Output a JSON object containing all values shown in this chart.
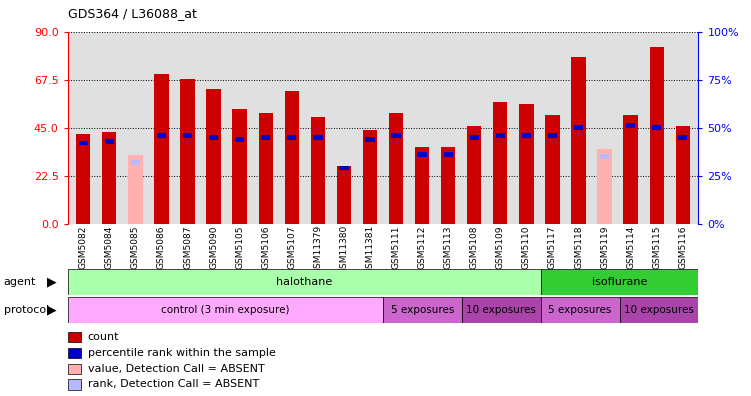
{
  "title": "GDS364 / L36088_at",
  "samples": [
    "GSM5082",
    "GSM5084",
    "GSM5085",
    "GSM5086",
    "GSM5087",
    "GSM5090",
    "GSM5105",
    "GSM5106",
    "GSM5107",
    "GSM11379",
    "GSM11380",
    "GSM11381",
    "GSM5111",
    "GSM5112",
    "GSM5113",
    "GSM5108",
    "GSM5109",
    "GSM5110",
    "GSM5117",
    "GSM5118",
    "GSM5119",
    "GSM5114",
    "GSM5115",
    "GSM5116"
  ],
  "count_values": [
    42,
    43,
    32,
    70,
    68,
    63,
    54,
    52,
    62,
    50,
    27,
    44,
    52,
    36,
    36,
    46,
    57,
    56,
    51,
    78,
    35,
    51,
    83,
    46
  ],
  "rank_values": [
    42,
    43,
    32,
    46,
    46,
    45,
    44,
    45,
    45,
    45,
    29,
    44,
    46,
    36,
    36,
    45,
    46,
    46,
    46,
    50,
    35,
    51,
    50,
    45
  ],
  "absent_count": [
    false,
    false,
    true,
    false,
    false,
    false,
    false,
    false,
    false,
    false,
    false,
    false,
    false,
    false,
    false,
    false,
    false,
    false,
    false,
    false,
    true,
    false,
    false,
    false
  ],
  "absent_rank": [
    false,
    false,
    true,
    false,
    false,
    false,
    false,
    false,
    false,
    false,
    false,
    false,
    false,
    false,
    false,
    false,
    false,
    false,
    false,
    false,
    true,
    false,
    false,
    false
  ],
  "ylim_left": [
    0,
    90
  ],
  "ylim_right": [
    0,
    100
  ],
  "yticks_left": [
    0,
    22.5,
    45,
    67.5,
    90
  ],
  "yticks_right": [
    0,
    25,
    50,
    75,
    100
  ],
  "bar_color_red": "#cc0000",
  "bar_color_pink": "#ffb0b0",
  "rank_color_blue": "#0000cc",
  "rank_color_lightblue": "#b8b8ff",
  "bar_width": 0.55,
  "protocol_sections": [
    {
      "label": "control (3 min exposure)",
      "start": 0,
      "end": 12,
      "color": "#ffaaff"
    },
    {
      "label": "5 exposures",
      "start": 12,
      "end": 15,
      "color": "#cc66cc"
    },
    {
      "label": "10 exposures",
      "start": 15,
      "end": 18,
      "color": "#aa44aa"
    },
    {
      "label": "5 exposures",
      "start": 18,
      "end": 21,
      "color": "#cc66cc"
    },
    {
      "label": "10 exposures",
      "start": 21,
      "end": 24,
      "color": "#aa44aa"
    }
  ],
  "agent_sections": [
    {
      "label": "halothane",
      "start": 0,
      "end": 18,
      "color": "#aaffaa"
    },
    {
      "label": "isoflurane",
      "start": 18,
      "end": 24,
      "color": "#33cc33"
    }
  ],
  "legend_items": [
    {
      "label": "count",
      "color": "#cc0000"
    },
    {
      "label": "percentile rank within the sample",
      "color": "#0000cc"
    },
    {
      "label": "value, Detection Call = ABSENT",
      "color": "#ffb0b0"
    },
    {
      "label": "rank, Detection Call = ABSENT",
      "color": "#b8b8ff"
    }
  ]
}
